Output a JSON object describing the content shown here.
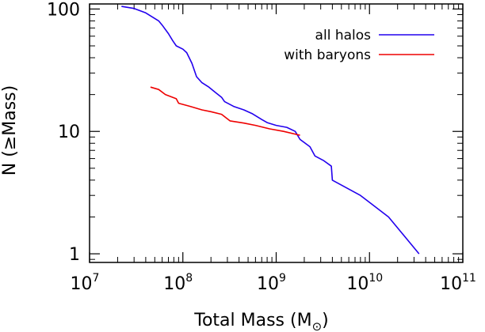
{
  "chart_data": {
    "type": "line",
    "xscale": "log",
    "yscale": "log",
    "xlim": [
      10000000.0,
      100000000000.0
    ],
    "ylim": [
      0.85,
      110
    ],
    "xlabel": "Total Mass (M",
    "xlabel_symbol": "⊙",
    "xlabel_close": ")",
    "ylabel": "N (≥Mass)",
    "x_ticks": [
      {
        "value": 10000000.0,
        "base": "10",
        "exp": "7"
      },
      {
        "value": 100000000.0,
        "base": "10",
        "exp": "8"
      },
      {
        "value": 1000000000.0,
        "base": "10",
        "exp": "9"
      },
      {
        "value": 10000000000.0,
        "base": "10",
        "exp": "10"
      },
      {
        "value": 100000000000.0,
        "base": "10",
        "exp": "11"
      }
    ],
    "y_ticks": [
      {
        "value": 1,
        "label": "1"
      },
      {
        "value": 10,
        "label": "10"
      },
      {
        "value": 100,
        "label": "100"
      }
    ],
    "legend_position": "top-right",
    "series": [
      {
        "name": "all halos",
        "color": "#2200ee",
        "points": [
          [
            22000000.0,
            105
          ],
          [
            30000000.0,
            101
          ],
          [
            40000000.0,
            93
          ],
          [
            55000000.0,
            80
          ],
          [
            60000000.0,
            74
          ],
          [
            70000000.0,
            63
          ],
          [
            78000000.0,
            55
          ],
          [
            85000000.0,
            50
          ],
          [
            100000000.0,
            47
          ],
          [
            110000000.0,
            44
          ],
          [
            125000000.0,
            36
          ],
          [
            140000000.0,
            28
          ],
          [
            160000000.0,
            25
          ],
          [
            190000000.0,
            23
          ],
          [
            220000000.0,
            21
          ],
          [
            260000000.0,
            19
          ],
          [
            280000000.0,
            17.5
          ],
          [
            350000000.0,
            16
          ],
          [
            450000000.0,
            15
          ],
          [
            550000000.0,
            14
          ],
          [
            700000000.0,
            12.5
          ],
          [
            800000000.0,
            11.8
          ],
          [
            1000000000.0,
            11.2
          ],
          [
            1300000000.0,
            10.8
          ],
          [
            1600000000.0,
            10
          ],
          [
            1800000000.0,
            8.6
          ],
          [
            2300000000.0,
            7.5
          ],
          [
            2600000000.0,
            6.3
          ],
          [
            3200000000.0,
            5.8
          ],
          [
            3900000000.0,
            5.2
          ],
          [
            4000000000.0,
            4.0
          ],
          [
            8000000000.0,
            3.0
          ],
          [
            16000000000.0,
            2.0
          ],
          [
            34000000000.0,
            1.0
          ]
        ]
      },
      {
        "name": "with baryons",
        "color": "#ee0000",
        "points": [
          [
            45000000.0,
            23
          ],
          [
            55000000.0,
            22
          ],
          [
            65000000.0,
            20
          ],
          [
            85000000.0,
            18.5
          ],
          [
            90000000.0,
            17
          ],
          [
            120000000.0,
            16
          ],
          [
            160000000.0,
            15
          ],
          [
            200000000.0,
            14.5
          ],
          [
            260000000.0,
            13.8
          ],
          [
            320000000.0,
            12.2
          ],
          [
            450000000.0,
            11.7
          ],
          [
            600000000.0,
            11.2
          ],
          [
            850000000.0,
            10.5
          ],
          [
            1200000000.0,
            10
          ],
          [
            1800000000.0,
            9.3
          ]
        ]
      }
    ]
  }
}
